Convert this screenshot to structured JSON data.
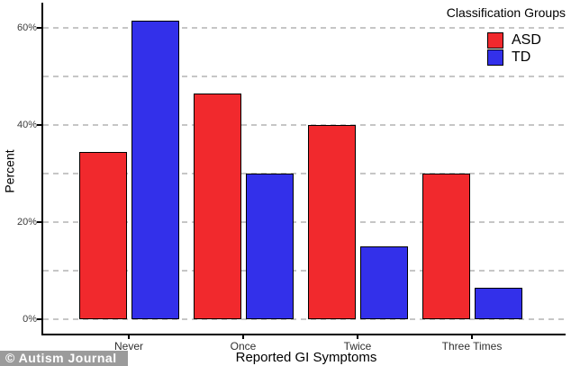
{
  "chart_data": {
    "type": "bar",
    "title": "",
    "categories": [
      "Never",
      "Once",
      "Twice",
      "Three Times"
    ],
    "series": [
      {
        "name": "ASD",
        "color": "#f1292d",
        "values": [
          34.4,
          46.5,
          40,
          30
        ]
      },
      {
        "name": "TD",
        "color": "#3330ea",
        "values": [
          61.5,
          30,
          15,
          6.5
        ]
      }
    ],
    "xlabel": "Reported GI Symptoms",
    "ylabel": "Percent",
    "ylim": [
      0,
      65
    ],
    "yticks": [
      0,
      20,
      40,
      60
    ],
    "ytick_labels": [
      "0%",
      "20%",
      "40%",
      "60%"
    ],
    "gridlines": [
      0,
      10,
      20,
      30,
      40,
      50,
      60
    ],
    "grid": "dashed",
    "gridline_color": "#c6c6c6",
    "axis_color": "#000000",
    "bar_outline_color": "#000000",
    "legend": {
      "title": "Classification Groups",
      "position": "top-right"
    }
  },
  "watermark": {
    "text": "© Autism Journal",
    "bg_color": "#9b9b9b",
    "text_color": "#ffffff"
  }
}
